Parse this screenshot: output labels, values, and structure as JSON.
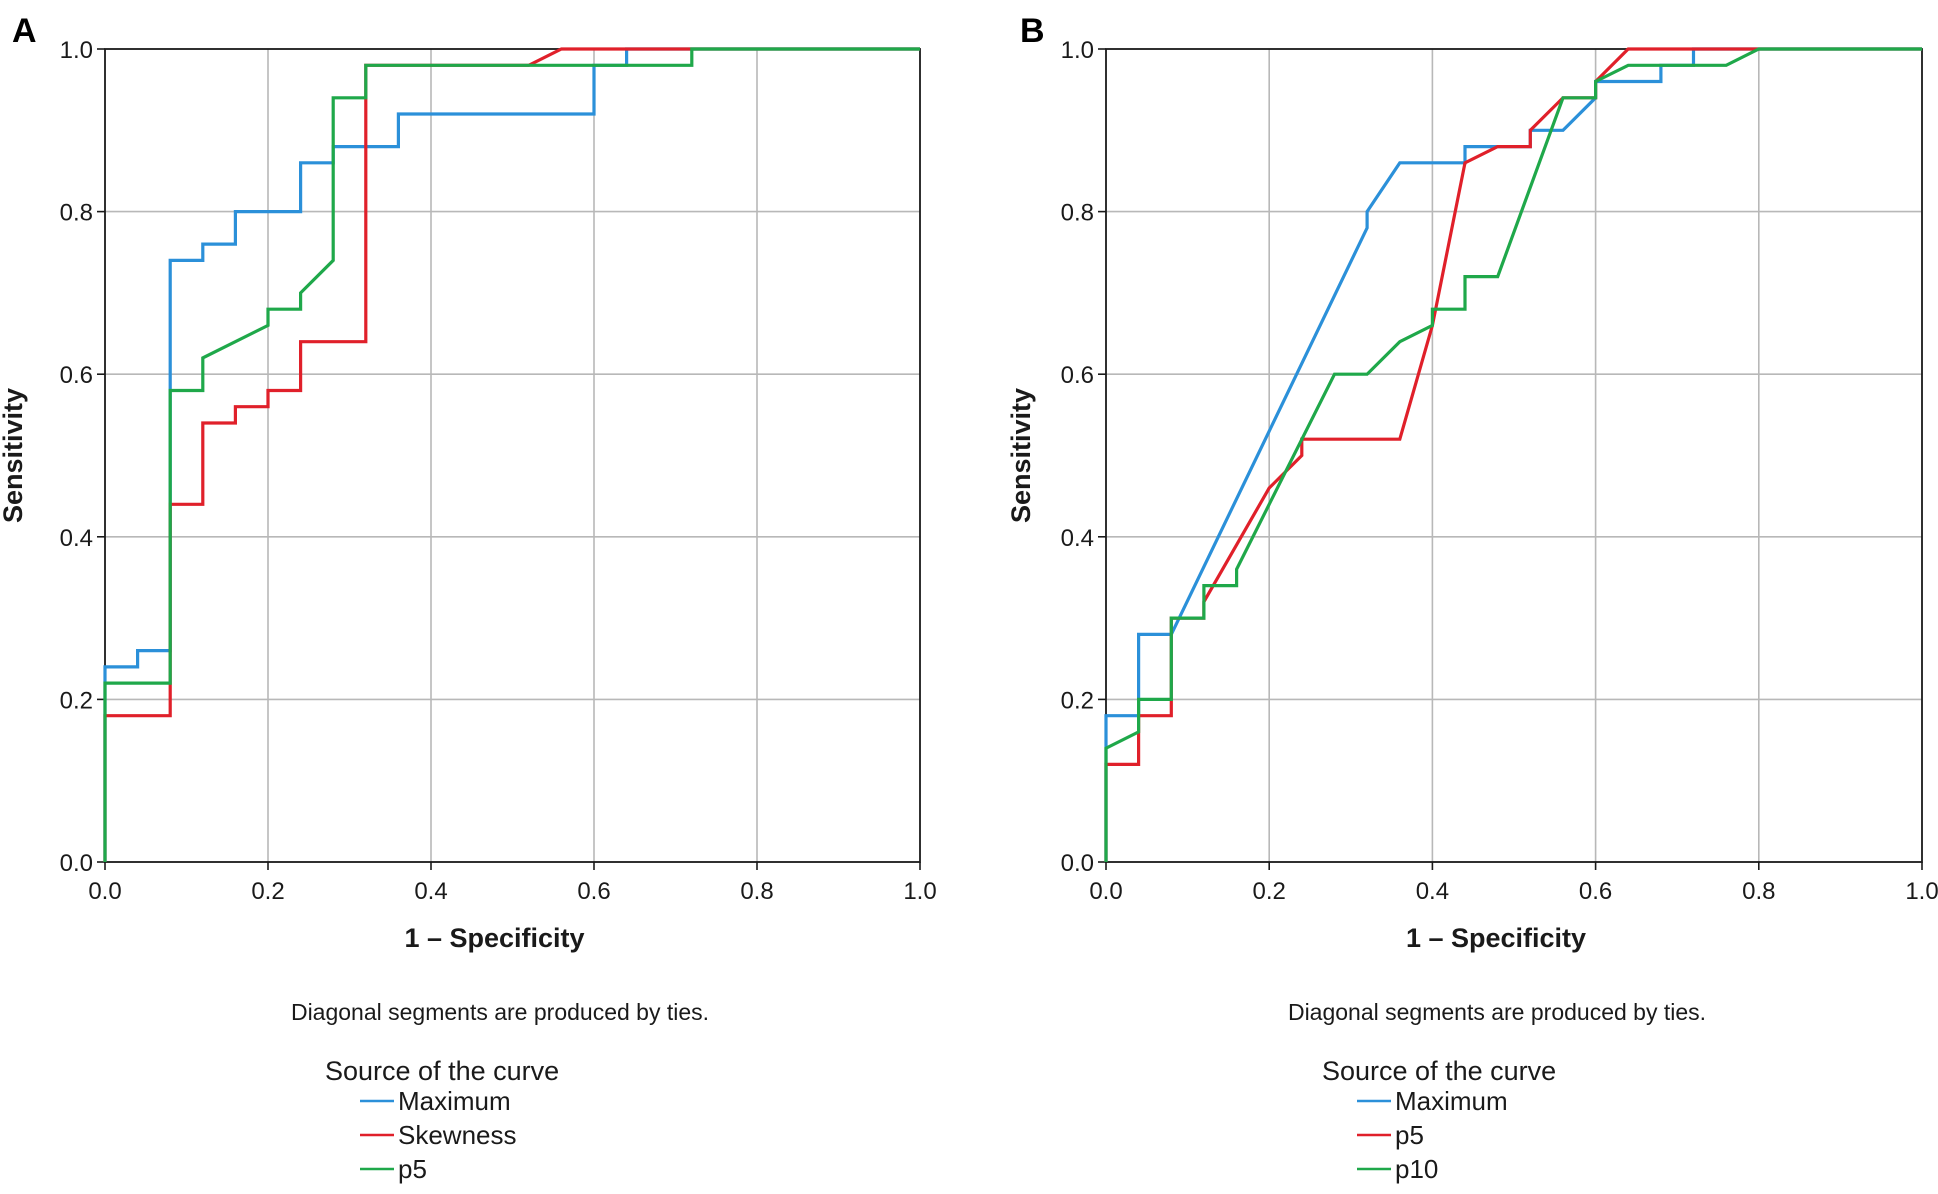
{
  "chart_data": [
    {
      "type": "line",
      "panel": "A",
      "xlabel": "1 – Specificity",
      "ylabel": "Sensitivity",
      "xlim": [
        0,
        1
      ],
      "ylim": [
        0,
        1
      ],
      "xticks": [
        "0.0",
        "0.2",
        "0.4",
        "0.6",
        "0.8",
        "1.0"
      ],
      "yticks": [
        "0.0",
        "0.2",
        "0.4",
        "0.6",
        "0.8",
        "1.0"
      ],
      "grid": true,
      "note": "Diagonal segments are produced by ties.",
      "legend_title": "Source of the curve",
      "legend_position": "bottom-center",
      "series": [
        {
          "name": "Maximum",
          "color": "#2b90d9",
          "points": [
            [
              0,
              0
            ],
            [
              0,
              0.24
            ],
            [
              0.04,
              0.24
            ],
            [
              0.04,
              0.26
            ],
            [
              0.08,
              0.26
            ],
            [
              0.08,
              0.74
            ],
            [
              0.12,
              0.74
            ],
            [
              0.12,
              0.76
            ],
            [
              0.16,
              0.76
            ],
            [
              0.16,
              0.8
            ],
            [
              0.24,
              0.8
            ],
            [
              0.24,
              0.86
            ],
            [
              0.28,
              0.86
            ],
            [
              0.28,
              0.88
            ],
            [
              0.36,
              0.88
            ],
            [
              0.36,
              0.92
            ],
            [
              0.6,
              0.92
            ],
            [
              0.6,
              0.98
            ],
            [
              0.64,
              0.98
            ],
            [
              0.64,
              1.0
            ],
            [
              1.0,
              1.0
            ]
          ]
        },
        {
          "name": "Skewness",
          "color": "#e0202a",
          "points": [
            [
              0,
              0
            ],
            [
              0,
              0.18
            ],
            [
              0.08,
              0.18
            ],
            [
              0.08,
              0.44
            ],
            [
              0.12,
              0.44
            ],
            [
              0.12,
              0.54
            ],
            [
              0.16,
              0.54
            ],
            [
              0.16,
              0.56
            ],
            [
              0.2,
              0.56
            ],
            [
              0.2,
              0.58
            ],
            [
              0.24,
              0.58
            ],
            [
              0.24,
              0.64
            ],
            [
              0.32,
              0.64
            ],
            [
              0.32,
              0.94
            ],
            [
              0.32,
              0.98
            ],
            [
              0.52,
              0.98
            ],
            [
              0.56,
              1.0
            ],
            [
              1.0,
              1.0
            ]
          ]
        },
        {
          "name": "p5",
          "color": "#1fa84a",
          "points": [
            [
              0,
              0
            ],
            [
              0,
              0.22
            ],
            [
              0.08,
              0.22
            ],
            [
              0.08,
              0.58
            ],
            [
              0.12,
              0.58
            ],
            [
              0.12,
              0.62
            ],
            [
              0.2,
              0.66
            ],
            [
              0.2,
              0.68
            ],
            [
              0.24,
              0.68
            ],
            [
              0.24,
              0.7
            ],
            [
              0.28,
              0.74
            ],
            [
              0.28,
              0.94
            ],
            [
              0.32,
              0.94
            ],
            [
              0.32,
              0.98
            ],
            [
              0.72,
              0.98
            ],
            [
              0.72,
              1.0
            ],
            [
              1.0,
              1.0
            ]
          ]
        }
      ]
    },
    {
      "type": "line",
      "panel": "B",
      "xlabel": "1 – Specificity",
      "ylabel": "Sensitivity",
      "xlim": [
        0,
        1
      ],
      "ylim": [
        0,
        1
      ],
      "xticks": [
        "0.0",
        "0.2",
        "0.4",
        "0.6",
        "0.8",
        "1.0"
      ],
      "yticks": [
        "0.0",
        "0.2",
        "0.4",
        "0.6",
        "0.8",
        "1.0"
      ],
      "grid": true,
      "note": "Diagonal segments are produced by ties.",
      "legend_title": "Source of the curve",
      "legend_position": "bottom-center",
      "series": [
        {
          "name": "Maximum",
          "color": "#2b90d9",
          "points": [
            [
              0,
              0
            ],
            [
              0,
              0.18
            ],
            [
              0.04,
              0.18
            ],
            [
              0.04,
              0.28
            ],
            [
              0.08,
              0.28
            ],
            [
              0.32,
              0.78
            ],
            [
              0.32,
              0.8
            ],
            [
              0.36,
              0.86
            ],
            [
              0.44,
              0.86
            ],
            [
              0.44,
              0.88
            ],
            [
              0.52,
              0.88
            ],
            [
              0.52,
              0.9
            ],
            [
              0.56,
              0.9
            ],
            [
              0.6,
              0.94
            ],
            [
              0.6,
              0.96
            ],
            [
              0.68,
              0.96
            ],
            [
              0.68,
              0.98
            ],
            [
              0.72,
              0.98
            ],
            [
              0.72,
              1.0
            ],
            [
              1.0,
              1.0
            ]
          ]
        },
        {
          "name": "p5",
          "color": "#e0202a",
          "points": [
            [
              0,
              0
            ],
            [
              0,
              0.12
            ],
            [
              0.04,
              0.12
            ],
            [
              0.04,
              0.18
            ],
            [
              0.08,
              0.18
            ],
            [
              0.08,
              0.3
            ],
            [
              0.12,
              0.3
            ],
            [
              0.12,
              0.32
            ],
            [
              0.2,
              0.46
            ],
            [
              0.24,
              0.5
            ],
            [
              0.24,
              0.52
            ],
            [
              0.36,
              0.52
            ],
            [
              0.4,
              0.66
            ],
            [
              0.44,
              0.86
            ],
            [
              0.48,
              0.88
            ],
            [
              0.52,
              0.88
            ],
            [
              0.52,
              0.9
            ],
            [
              0.56,
              0.94
            ],
            [
              0.6,
              0.94
            ],
            [
              0.6,
              0.96
            ],
            [
              0.64,
              1.0
            ],
            [
              1.0,
              1.0
            ]
          ]
        },
        {
          "name": "p10",
          "color": "#1fa84a",
          "points": [
            [
              0,
              0
            ],
            [
              0,
              0.14
            ],
            [
              0.04,
              0.16
            ],
            [
              0.04,
              0.2
            ],
            [
              0.08,
              0.2
            ],
            [
              0.08,
              0.3
            ],
            [
              0.12,
              0.3
            ],
            [
              0.12,
              0.34
            ],
            [
              0.16,
              0.34
            ],
            [
              0.16,
              0.36
            ],
            [
              0.28,
              0.6
            ],
            [
              0.32,
              0.6
            ],
            [
              0.36,
              0.64
            ],
            [
              0.4,
              0.66
            ],
            [
              0.4,
              0.68
            ],
            [
              0.44,
              0.68
            ],
            [
              0.44,
              0.72
            ],
            [
              0.48,
              0.72
            ],
            [
              0.56,
              0.94
            ],
            [
              0.6,
              0.94
            ],
            [
              0.6,
              0.96
            ],
            [
              0.64,
              0.98
            ],
            [
              0.76,
              0.98
            ],
            [
              0.8,
              1.0
            ],
            [
              1.0,
              1.0
            ]
          ]
        }
      ]
    }
  ]
}
